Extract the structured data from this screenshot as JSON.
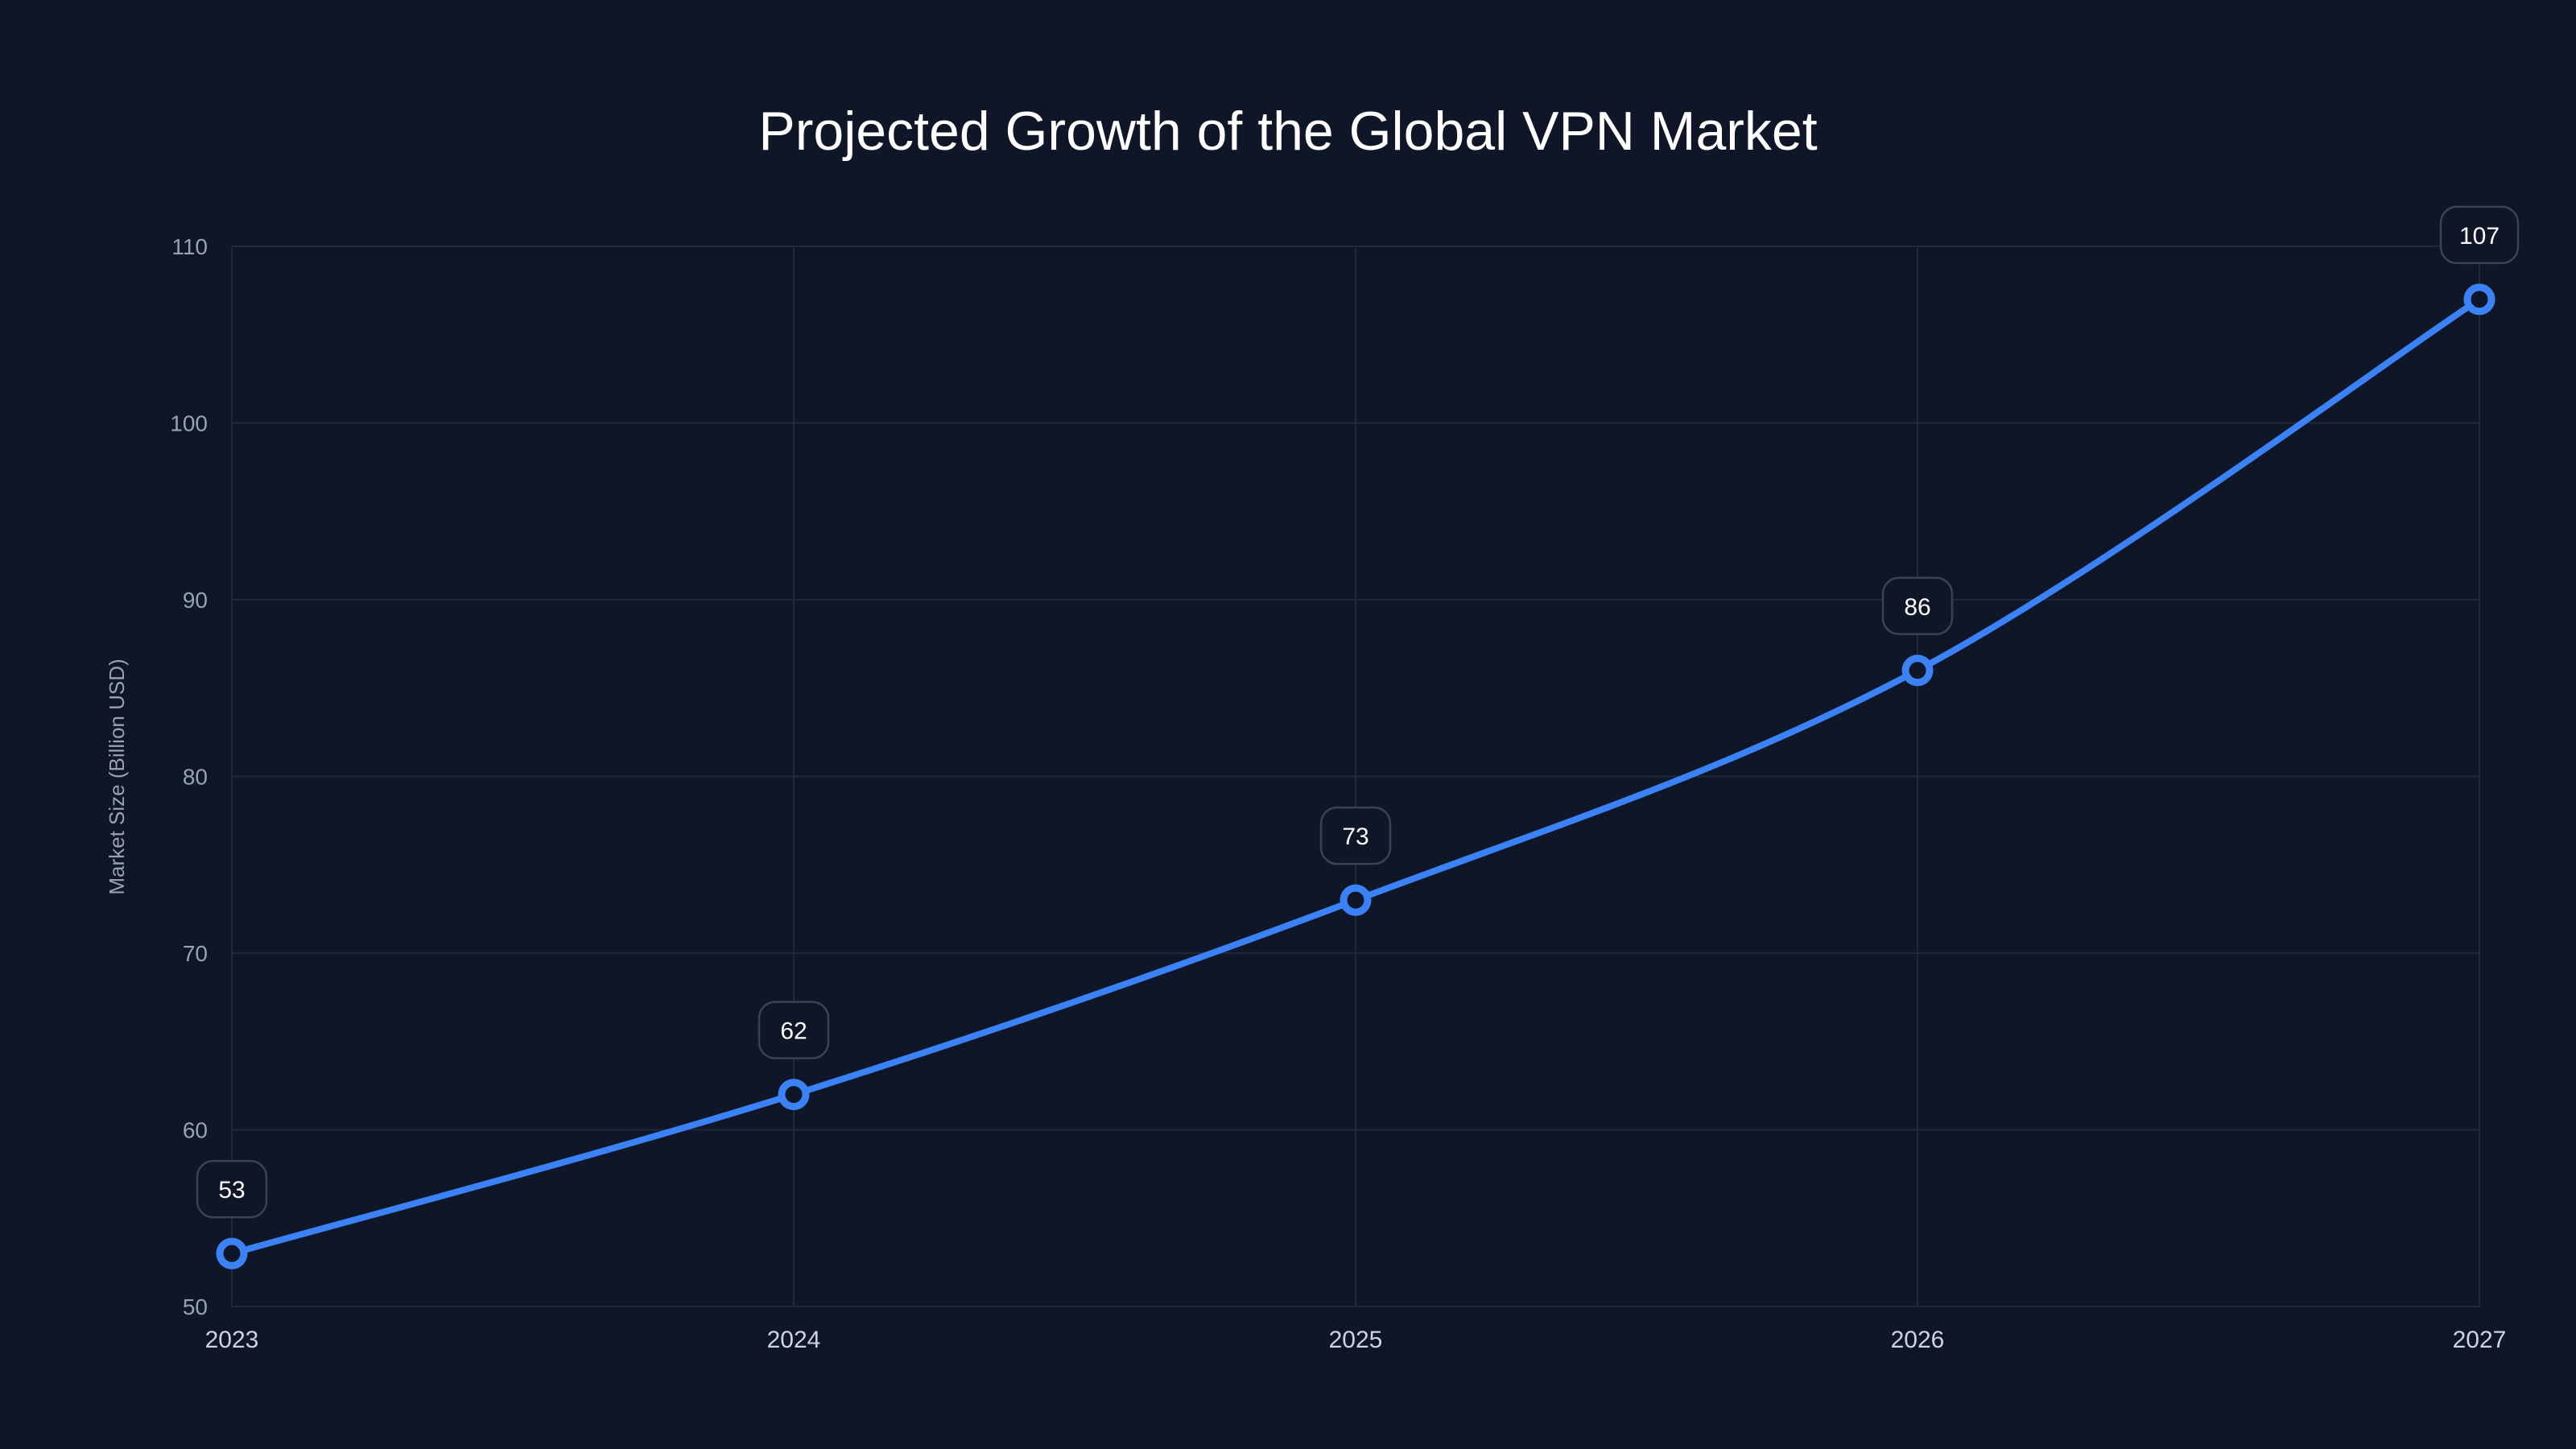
{
  "chart_data": {
    "type": "line",
    "title": "Projected Growth of the Global VPN Market",
    "xlabel": "",
    "ylabel": "Market Size (Billion USD)",
    "categories": [
      "2023",
      "2024",
      "2025",
      "2026",
      "2027"
    ],
    "series": [
      {
        "name": "Market Size",
        "values": [
          53,
          62,
          73,
          86,
          107
        ]
      }
    ],
    "ylim": [
      50,
      110
    ],
    "yticks": [
      50,
      60,
      70,
      80,
      90,
      100,
      110
    ],
    "grid": true,
    "legend": "none",
    "colors": {
      "background": "#0e1628",
      "line": "#3b82f6",
      "grid": "#1e293b",
      "label_border": "#3a4354"
    }
  }
}
